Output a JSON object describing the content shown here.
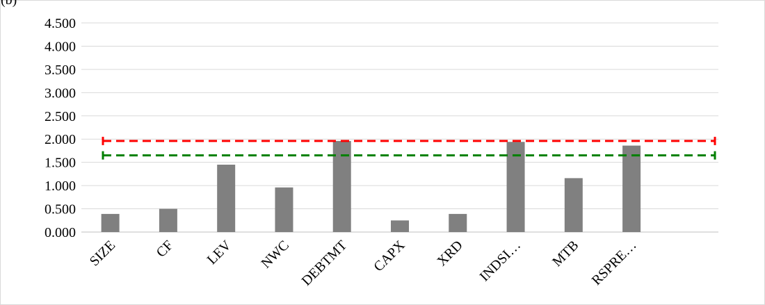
{
  "panel_label": "(b)",
  "chart_data": {
    "type": "bar",
    "categories": [
      "SIZE",
      "CF",
      "LEV",
      "NWC",
      "DEBTMT",
      "CAPX",
      "XRD",
      "INDSI…",
      "MTB",
      "RSPRE…"
    ],
    "values": [
      0.39,
      0.5,
      1.45,
      0.96,
      1.96,
      0.25,
      0.39,
      1.94,
      1.16,
      1.86
    ],
    "ylim": [
      0,
      4.5
    ],
    "yticks": [
      "0.000",
      "0.500",
      "1.000",
      "1.500",
      "2.000",
      "2.500",
      "3.000",
      "3.500",
      "4.000",
      "4.500"
    ],
    "grid": true,
    "bar_color": "#808080",
    "reference_lines": [
      {
        "value": 1.96,
        "color": "#ff0000",
        "style": "dashed"
      },
      {
        "value": 1.65,
        "color": "#008000",
        "style": "dashed"
      }
    ]
  }
}
